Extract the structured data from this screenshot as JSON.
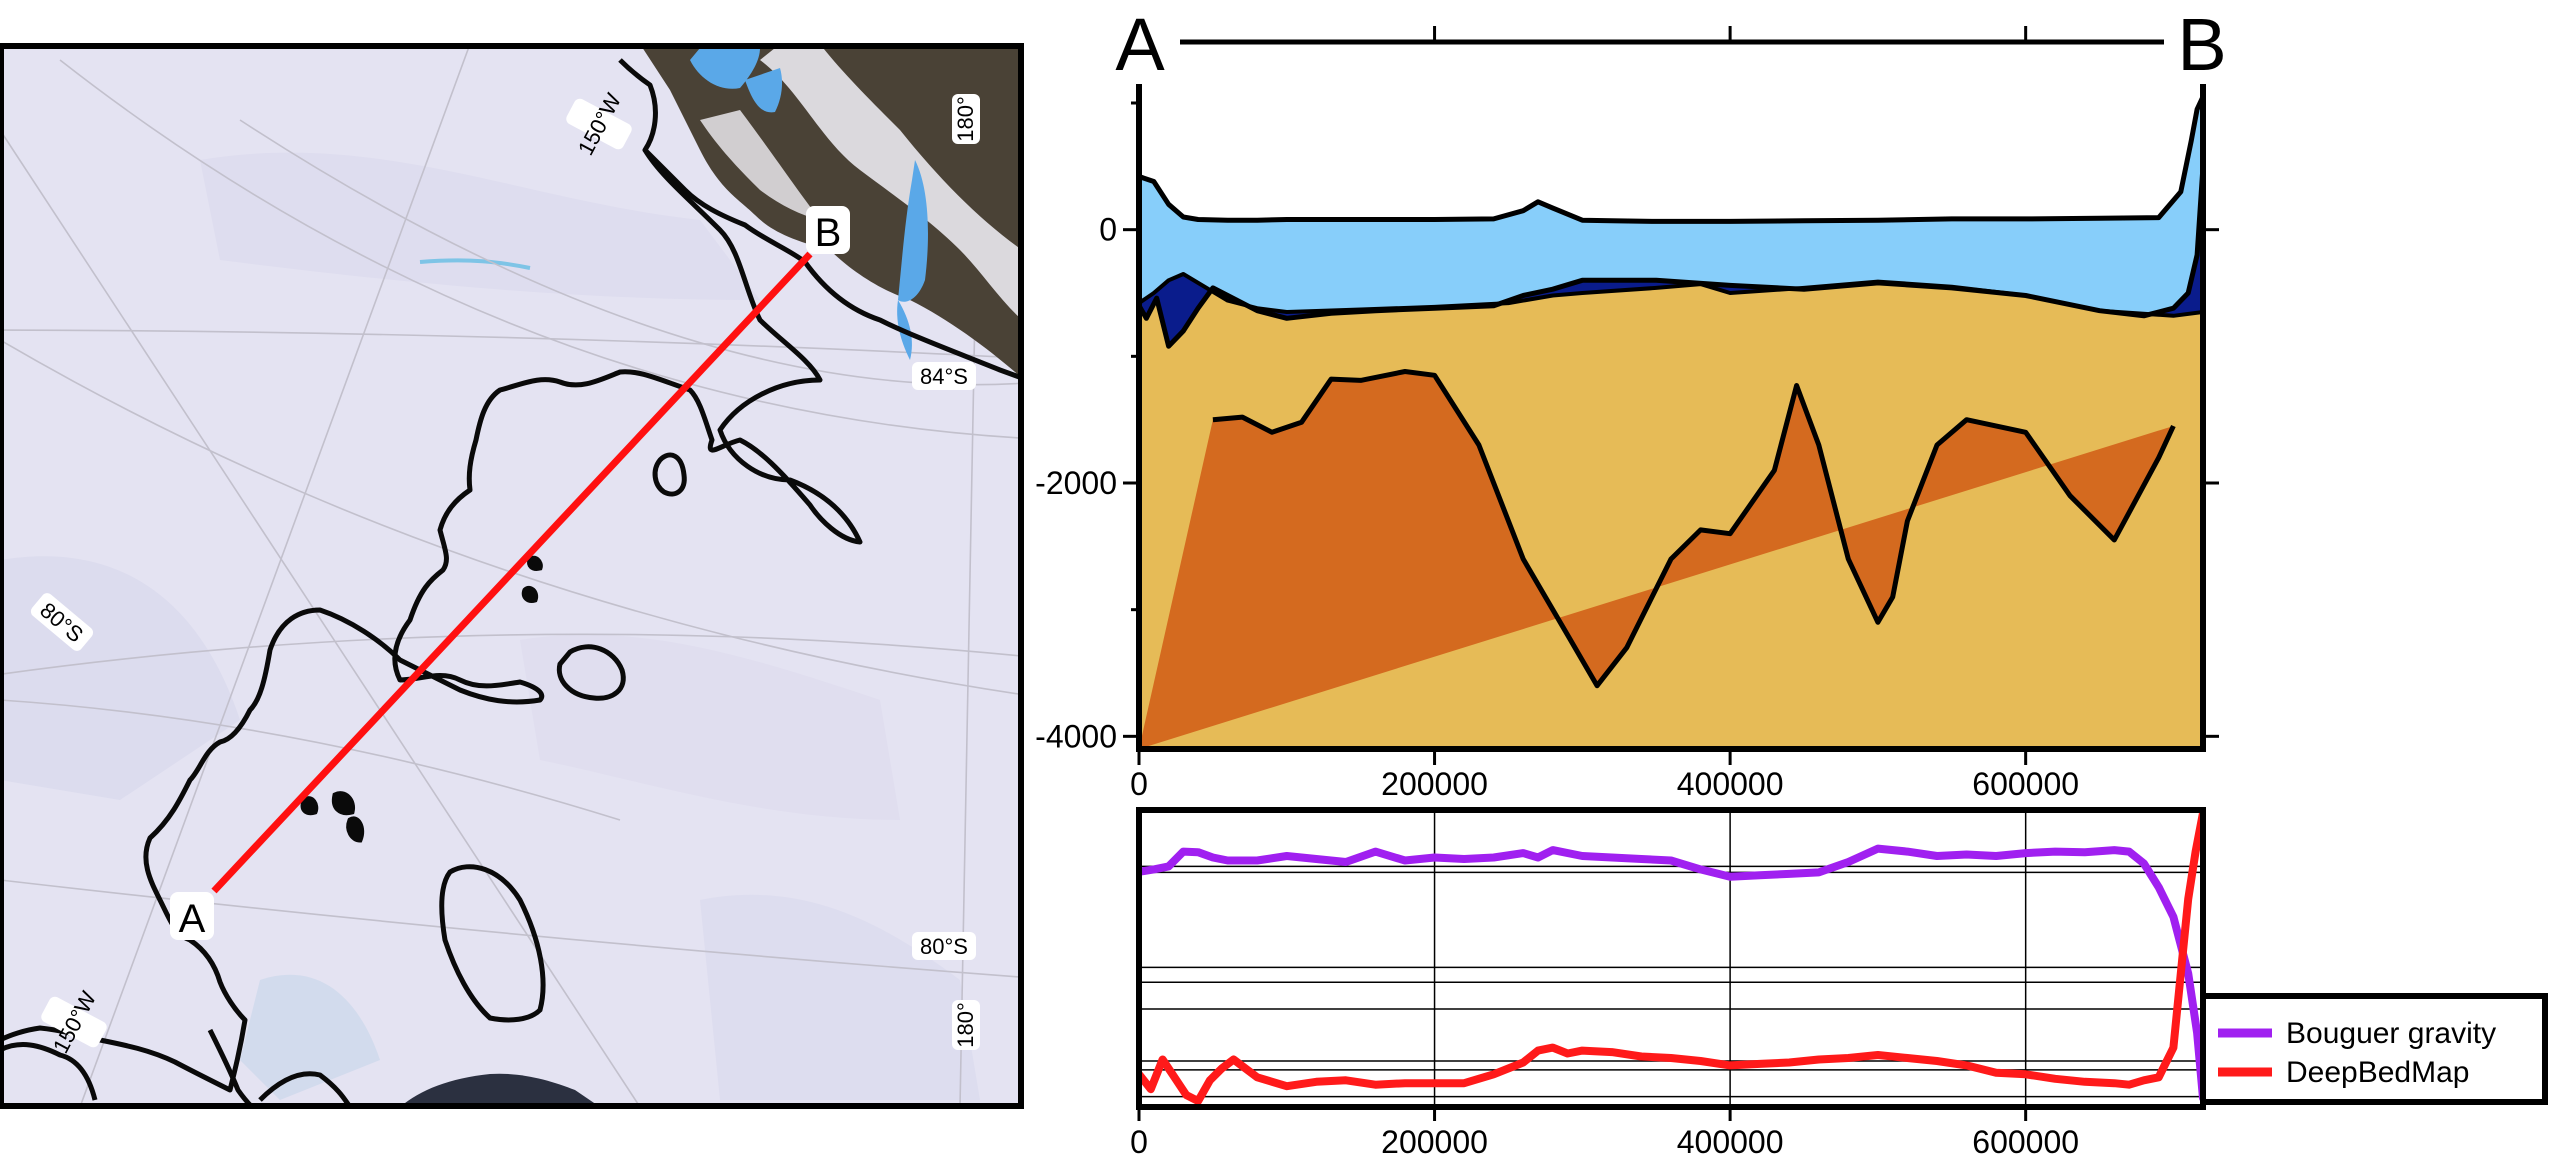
{
  "map": {
    "endpoint_a": "A",
    "endpoint_b": "B",
    "graticule_labels": [
      "150°W",
      "180°",
      "84°S",
      "80°S",
      "80°S",
      "150°W",
      "180°"
    ],
    "colors": {
      "ice": "#e4e3f2",
      "grounding_line": "#0a0a0a",
      "transect": "#ff1010",
      "rock": "#4a4236",
      "water": "#5aa8e8"
    }
  },
  "chart_data": [
    {
      "type": "area",
      "title": "",
      "header_left": "A",
      "header_right": "B",
      "xlabel": "",
      "ylabel": "",
      "xlim": [
        0,
        720000
      ],
      "ylim": [
        -4100,
        1150
      ],
      "x_ticks": [
        0,
        200000,
        400000,
        600000
      ],
      "y_ticks": [
        0,
        -2000,
        -4000
      ],
      "colors": {
        "ice": "#87cefa",
        "water": "#0a1c8c",
        "bed_layer": "#e6bb57",
        "lower_layer": "#d46a1f"
      },
      "series": [
        {
          "x": [
            0,
            10000,
            20000,
            30000,
            40000,
            60000,
            80000,
            100000,
            150000,
            200000,
            240000,
            260000,
            270000,
            280000,
            300000,
            320000,
            350000,
            400000,
            450000,
            500000,
            550000,
            600000,
            650000,
            690000,
            705000,
            712000,
            716000,
            720000
          ],
          "values": [
            420,
            380,
            200,
            100,
            80,
            75,
            75,
            80,
            80,
            80,
            85,
            150,
            220,
            170,
            75,
            70,
            65,
            65,
            70,
            75,
            85,
            85,
            90,
            95,
            300,
            700,
            950,
            1050
          ]
        },
        {
          "x": [
            0,
            10000,
            20000,
            30000,
            40000,
            60000,
            80000,
            100000,
            150000,
            200000,
            250000,
            280000,
            300000,
            350000,
            380000,
            400000,
            450000,
            500000,
            550000,
            600000,
            650000,
            700000,
            720000
          ],
          "values": [
            -580,
            -500,
            -400,
            -350,
            -420,
            -560,
            -620,
            -650,
            -630,
            -610,
            -580,
            -520,
            -500,
            -460,
            -430,
            -500,
            -460,
            -410,
            -450,
            -520,
            -640,
            -680,
            -650
          ]
        },
        {
          "x": [
            0,
            5000,
            12000,
            20000,
            30000,
            40000,
            50000,
            60000,
            80000,
            100000,
            130000,
            160000,
            200000,
            240000,
            260000,
            280000,
            300000,
            350000,
            400000,
            450000,
            500000,
            550000,
            600000,
            650000,
            680000,
            700000,
            710000,
            716000,
            720000
          ],
          "values": [
            -600,
            -700,
            -540,
            -920,
            -800,
            -620,
            -460,
            -520,
            -640,
            -700,
            -660,
            -640,
            -620,
            -600,
            -520,
            -470,
            -400,
            -400,
            -440,
            -470,
            -420,
            -460,
            -520,
            -640,
            -680,
            -620,
            -500,
            -200,
            500
          ]
        },
        {
          "x": [
            50000,
            70000,
            90000,
            110000,
            130000,
            150000,
            180000,
            200000,
            230000,
            260000,
            290000,
            310000,
            330000,
            360000,
            380000,
            400000,
            430000,
            445000,
            460000,
            480000,
            500000,
            510000,
            520000,
            540000,
            560000,
            600000,
            630000,
            660000,
            690000,
            700000
          ],
          "values": [
            -1500,
            -1480,
            -1600,
            -1520,
            -1180,
            -1190,
            -1120,
            -1150,
            -1700,
            -2600,
            -3200,
            -3600,
            -3300,
            -2600,
            -2370,
            -2400,
            -1900,
            -1230,
            -1700,
            -2600,
            -3100,
            -2900,
            -2300,
            -1700,
            -1500,
            -1600,
            -2100,
            -2450,
            -1800,
            -1550
          ]
        }
      ]
    },
    {
      "type": "line",
      "title": "",
      "xlabel": "",
      "ylabel": "",
      "xlim": [
        0,
        720000
      ],
      "ylim": [
        0,
        1
      ],
      "x_ticks": [
        0,
        200000,
        400000,
        600000
      ],
      "y_ticks": [],
      "legend_position": "bottom-right",
      "series": [
        {
          "name": "Bouguer gravity",
          "color": "#a020f0",
          "x": [
            0,
            10000,
            20000,
            30000,
            40000,
            50000,
            60000,
            80000,
            100000,
            120000,
            140000,
            160000,
            180000,
            200000,
            220000,
            240000,
            260000,
            270000,
            280000,
            300000,
            320000,
            340000,
            360000,
            380000,
            400000,
            420000,
            440000,
            460000,
            480000,
            500000,
            520000,
            540000,
            560000,
            580000,
            600000,
            620000,
            640000,
            660000,
            670000,
            680000,
            690000,
            700000,
            710000,
            716000,
            720000
          ],
          "values": [
            0.792,
            0.8,
            0.81,
            0.86,
            0.858,
            0.84,
            0.83,
            0.83,
            0.845,
            0.835,
            0.825,
            0.86,
            0.83,
            0.84,
            0.835,
            0.84,
            0.855,
            0.84,
            0.865,
            0.845,
            0.84,
            0.835,
            0.83,
            0.8,
            0.775,
            0.78,
            0.785,
            0.79,
            0.825,
            0.87,
            0.86,
            0.845,
            0.85,
            0.845,
            0.855,
            0.86,
            0.858,
            0.865,
            0.86,
            0.82,
            0.74,
            0.64,
            0.45,
            0.25,
            0.03
          ]
        },
        {
          "name": "DeepBedMap",
          "color": "#ff1a1a",
          "x": [
            0,
            8000,
            16000,
            24000,
            32000,
            40000,
            48000,
            56000,
            64000,
            80000,
            100000,
            120000,
            140000,
            160000,
            180000,
            200000,
            220000,
            240000,
            260000,
            270000,
            280000,
            290000,
            300000,
            320000,
            340000,
            360000,
            380000,
            400000,
            420000,
            440000,
            460000,
            480000,
            500000,
            520000,
            540000,
            560000,
            580000,
            600000,
            620000,
            640000,
            660000,
            670000,
            680000,
            690000,
            700000,
            705000,
            710000,
            715000,
            720000
          ],
          "values": [
            0.11,
            0.06,
            0.16,
            0.1,
            0.04,
            0.02,
            0.09,
            0.13,
            0.16,
            0.1,
            0.07,
            0.085,
            0.09,
            0.075,
            0.08,
            0.08,
            0.08,
            0.11,
            0.15,
            0.19,
            0.2,
            0.18,
            0.19,
            0.185,
            0.17,
            0.165,
            0.155,
            0.14,
            0.145,
            0.15,
            0.16,
            0.165,
            0.175,
            0.165,
            0.155,
            0.14,
            0.115,
            0.11,
            0.095,
            0.085,
            0.08,
            0.075,
            0.09,
            0.1,
            0.2,
            0.45,
            0.7,
            0.86,
            0.99
          ]
        }
      ]
    }
  ]
}
